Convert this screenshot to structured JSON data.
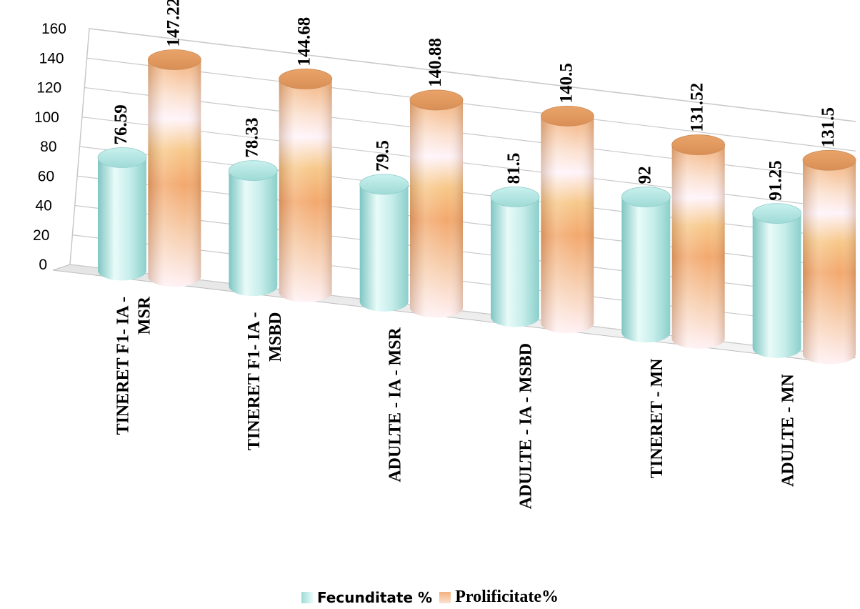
{
  "chart_data": {
    "type": "bar",
    "title": "",
    "xlabel": "",
    "ylabel": "",
    "ylim": [
      0,
      160
    ],
    "yticks": [
      0,
      20,
      40,
      60,
      80,
      100,
      120,
      140,
      160
    ],
    "categories": [
      [
        "TINERET F1- IA -",
        "MSR"
      ],
      [
        "TINERET F1- IA -",
        "MSBD"
      ],
      [
        "ADULTE - IA - MSR"
      ],
      [
        "ADULTE - IA - MSBD"
      ],
      [
        "TINERET - MN"
      ],
      [
        "ADULTE - MN"
      ]
    ],
    "series": [
      {
        "name": "Fecunditate %",
        "values": [
          76.59,
          78.33,
          79.5,
          81.5,
          92,
          91.25
        ],
        "color": "#b8ece8"
      },
      {
        "name": "Prolificitate%",
        "values": [
          147.22,
          144.68,
          140.88,
          140.5,
          131.52,
          131.5
        ],
        "color": "#f0b27a"
      }
    ],
    "value_labels": [
      [
        "76.59",
        "78.33",
        "79.5",
        "81.5",
        "92",
        "91.25"
      ],
      [
        "147.22",
        "144.68",
        "140.88",
        "140.5",
        "131.52",
        "131.5"
      ]
    ],
    "grid": true,
    "legend_position": "bottom",
    "style": "3d-cylinder"
  }
}
